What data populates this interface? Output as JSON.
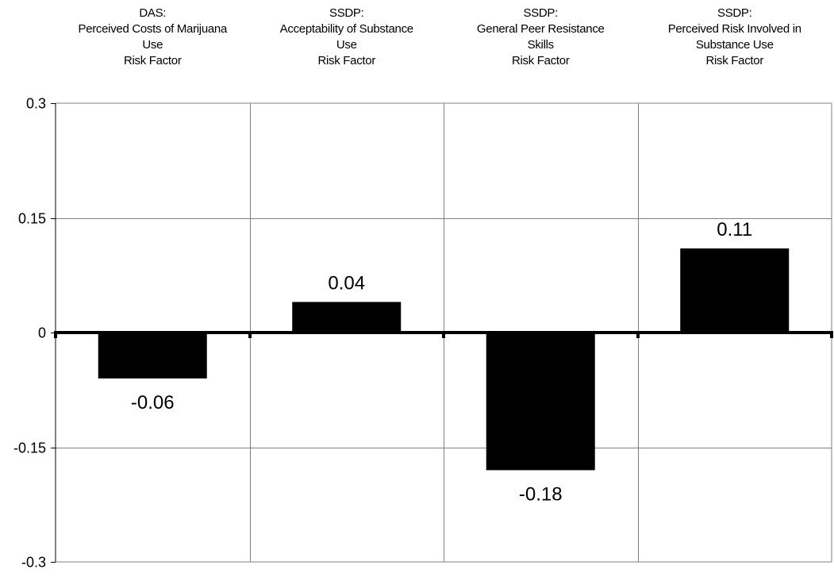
{
  "chart_data": {
    "type": "bar",
    "categories": [
      [
        "DAS:",
        "Perceived Costs of Marijuana",
        "Use",
        "Risk Factor"
      ],
      [
        "SSDP:",
        "Acceptability of Substance",
        "Use",
        "Risk Factor"
      ],
      [
        "SSDP:",
        "General Peer Resistance",
        "Skills",
        "Risk Factor"
      ],
      [
        "SSDP:",
        "Perceived Risk Involved in",
        "Substance Use",
        "Risk Factor"
      ]
    ],
    "values": [
      -0.06,
      0.04,
      -0.18,
      0.11
    ],
    "value_labels": [
      "-0.06",
      "0.04",
      "-0.18",
      "0.11"
    ],
    "yticks": [
      0.3,
      0.15,
      0,
      -0.15,
      -0.3
    ],
    "ytick_labels": [
      "0.3",
      "0.15",
      "0",
      "-0.15",
      "-0.3"
    ],
    "ylim": [
      -0.3,
      0.3
    ],
    "title": "",
    "xlabel": "",
    "ylabel": "",
    "category_axis_position": "top",
    "grid": true,
    "legend": "none",
    "colors": {
      "bar": "#000000",
      "grid": "#808080",
      "axis": "#000000",
      "background": "#ffffff"
    }
  }
}
